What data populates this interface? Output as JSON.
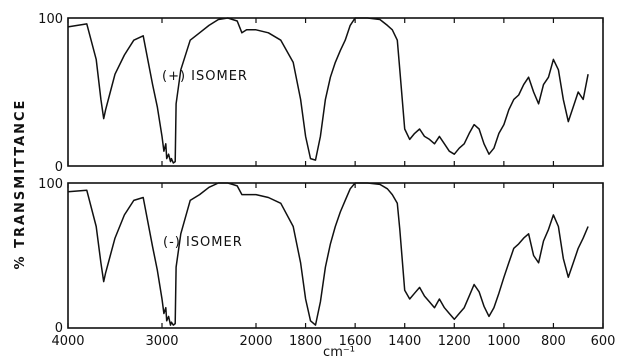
{
  "chart_data": {
    "type": "line",
    "ylabel": "% TRANSMITTANCE",
    "xlabel": "cm⁻¹",
    "x_ticks": [
      4000,
      3000,
      2000,
      1800,
      1600,
      1400,
      1200,
      1000,
      800,
      600
    ],
    "y_tick_labels": [
      "100",
      "0"
    ],
    "grid": false,
    "panels": [
      {
        "annotation": "(+) ISOMER",
        "series": [
          {
            "x": [
              4000,
              3800,
              3700,
              3650,
              3620,
              3600,
              3550,
              3500,
              3400,
              3300,
              3200,
              3100,
              3050,
              3000,
              2980,
              2960,
              2950,
              2930,
              2910,
              2900,
              2880,
              2860,
              2850,
              2800,
              2700,
              2600,
              2500,
              2400,
              2300,
              2250,
              2200,
              2150,
              2100,
              2000,
              1950,
              1900,
              1850,
              1820,
              1800,
              1780,
              1760,
              1740,
              1720,
              1700,
              1680,
              1660,
              1640,
              1620,
              1600,
              1550,
              1500,
              1470,
              1450,
              1430,
              1420,
              1400,
              1380,
              1360,
              1340,
              1320,
              1300,
              1280,
              1260,
              1240,
              1220,
              1200,
              1180,
              1160,
              1140,
              1120,
              1100,
              1080,
              1060,
              1040,
              1020,
              1000,
              980,
              960,
              940,
              920,
              900,
              880,
              860,
              840,
              820,
              800,
              780,
              760,
              740,
              720,
              700,
              680,
              660
            ],
            "y": [
              94,
              96,
              72,
              45,
              32,
              38,
              50,
              62,
              75,
              85,
              88,
              55,
              40,
              20,
              10,
              15,
              5,
              8,
              3,
              5,
              2,
              3,
              42,
              65,
              85,
              90,
              95,
              99,
              100,
              99,
              98,
              90,
              92,
              92,
              90,
              85,
              70,
              45,
              20,
              5,
              4,
              20,
              45,
              60,
              70,
              78,
              85,
              95,
              100,
              100,
              99,
              95,
              92,
              85,
              65,
              25,
              18,
              22,
              25,
              20,
              18,
              15,
              20,
              15,
              10,
              8,
              12,
              15,
              22,
              28,
              25,
              15,
              8,
              12,
              22,
              28,
              38,
              45,
              48,
              55,
              60,
              50,
              42,
              55,
              60,
              72,
              65,
              45,
              30,
              40,
              50,
              45,
              62
            ]
          }
        ]
      },
      {
        "annotation": "(-) ISOMER",
        "series": [
          {
            "x": [
              4000,
              3800,
              3700,
              3650,
              3620,
              3600,
              3550,
              3500,
              3400,
              3300,
              3200,
              3100,
              3050,
              3000,
              2980,
              2960,
              2950,
              2930,
              2910,
              2900,
              2880,
              2860,
              2850,
              2800,
              2700,
              2600,
              2500,
              2400,
              2300,
              2250,
              2200,
              2150,
              2100,
              2000,
              1950,
              1900,
              1850,
              1820,
              1800,
              1780,
              1760,
              1740,
              1720,
              1700,
              1680,
              1660,
              1640,
              1620,
              1600,
              1550,
              1500,
              1470,
              1450,
              1430,
              1420,
              1400,
              1380,
              1360,
              1340,
              1320,
              1300,
              1280,
              1260,
              1240,
              1220,
              1200,
              1180,
              1160,
              1140,
              1120,
              1100,
              1080,
              1060,
              1040,
              1020,
              1000,
              980,
              960,
              940,
              920,
              900,
              880,
              860,
              840,
              820,
              800,
              780,
              760,
              740,
              720,
              700,
              680,
              660
            ],
            "y": [
              94,
              95,
              70,
              45,
              32,
              38,
              50,
              62,
              78,
              88,
              90,
              56,
              40,
              20,
              10,
              14,
              5,
              8,
              2,
              4,
              2,
              3,
              42,
              65,
              88,
              92,
              97,
              100,
              100,
              99,
              98,
              92,
              92,
              92,
              90,
              86,
              70,
              45,
              20,
              5,
              2,
              18,
              42,
              58,
              70,
              80,
              88,
              96,
              100,
              100,
              99,
              96,
              92,
              86,
              68,
              26,
              20,
              24,
              28,
              22,
              18,
              14,
              20,
              14,
              10,
              6,
              10,
              14,
              22,
              30,
              25,
              15,
              8,
              14,
              24,
              35,
              45,
              55,
              58,
              62,
              65,
              50,
              45,
              60,
              68,
              78,
              70,
              48,
              35,
              45,
              55,
              62,
              70
            ]
          }
        ]
      }
    ]
  }
}
